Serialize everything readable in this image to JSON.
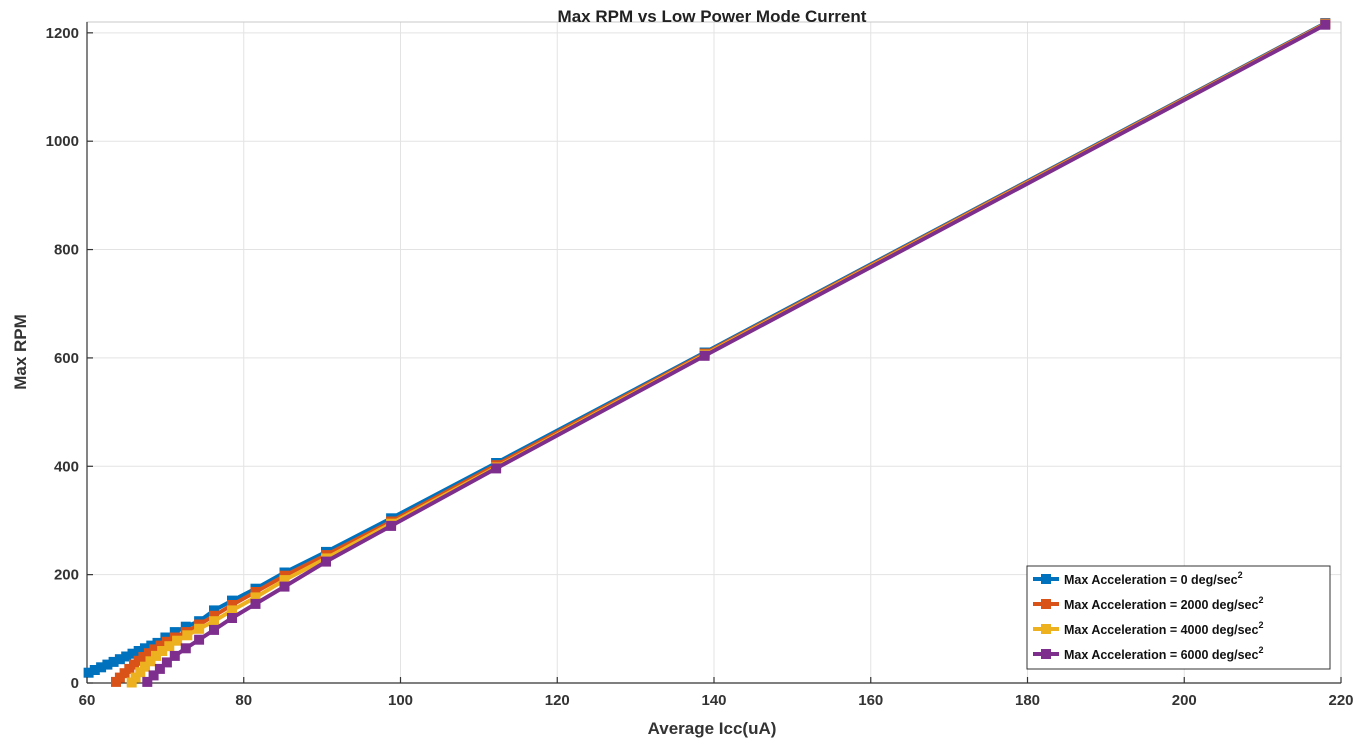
{
  "chart_data": {
    "type": "line",
    "title": "Max RPM vs Low Power Mode Current",
    "xlabel": "Average Icc(uA)",
    "ylabel": "Max RPM",
    "xlim": [
      60,
      220
    ],
    "ylim": [
      0,
      1220
    ],
    "xticks": [
      60,
      80,
      100,
      120,
      140,
      160,
      180,
      200,
      220
    ],
    "yticks": [
      0,
      200,
      400,
      600,
      800,
      1000,
      1200
    ],
    "grid": true,
    "legend_position": "bottom-right",
    "series": [
      {
        "legend_main": "Max Acceleration = 0 deg/sec",
        "legend_sup": "2",
        "color": "#0072BD",
        "x": [
          60.2,
          61.0,
          61.8,
          62.6,
          63.4,
          64.2,
          65.0,
          65.8,
          66.6,
          67.4,
          68.2,
          69.0,
          70.0,
          71.2,
          72.6,
          74.3,
          76.2,
          78.5,
          81.5,
          85.2,
          90.5,
          98.8,
          112.2,
          138.8,
          218.0
        ],
        "y": [
          19,
          24,
          29,
          34,
          39,
          44,
          49,
          54,
          59,
          64,
          69,
          74,
          84,
          94,
          104,
          114,
          134,
          152,
          174,
          204,
          242,
          304,
          406,
          610,
          1218
        ]
      },
      {
        "legend_main": "Max Acceleration = 2000 deg/sec",
        "legend_sup": "2",
        "color": "#D95319",
        "x": [
          63.7,
          64.2,
          64.8,
          65.4,
          66.0,
          66.6,
          67.2,
          67.9,
          68.6,
          69.4,
          70.2,
          71.2,
          72.6,
          74.3,
          76.2,
          78.5,
          81.5,
          85.2,
          90.5,
          98.8,
          112.2,
          138.8,
          218.0
        ],
        "y": [
          2,
          10,
          18,
          26,
          34,
          41,
          48,
          55,
          62,
          69,
          76,
          84,
          94,
          108,
          124,
          144,
          168,
          198,
          236,
          298,
          402,
          608,
          1217
        ]
      },
      {
        "legend_main": "Max Acceleration = 4000 deg/sec",
        "legend_sup": "2",
        "color": "#EDB120",
        "x": [
          65.7,
          66.2,
          66.8,
          67.4,
          68.1,
          68.8,
          69.6,
          70.5,
          71.5,
          72.8,
          74.3,
          76.2,
          78.5,
          81.5,
          85.2,
          90.5,
          98.8,
          112.2,
          138.8,
          218.0
        ],
        "y": [
          1,
          10,
          20,
          30,
          40,
          50,
          59,
          68,
          78,
          88,
          100,
          114,
          134,
          158,
          190,
          230,
          294,
          398,
          606,
          1216
        ]
      },
      {
        "legend_main": "Max Acceleration = 6000 deg/sec",
        "legend_sup": "2",
        "color": "#7E2F8E",
        "x": [
          67.7,
          68.5,
          69.3,
          70.2,
          71.2,
          72.6,
          74.3,
          76.2,
          78.5,
          81.5,
          85.2,
          90.5,
          98.8,
          112.2,
          138.8,
          218.0
        ],
        "y": [
          2,
          14,
          26,
          38,
          50,
          64,
          80,
          98,
          120,
          146,
          178,
          224,
          290,
          396,
          604,
          1215
        ]
      }
    ]
  }
}
